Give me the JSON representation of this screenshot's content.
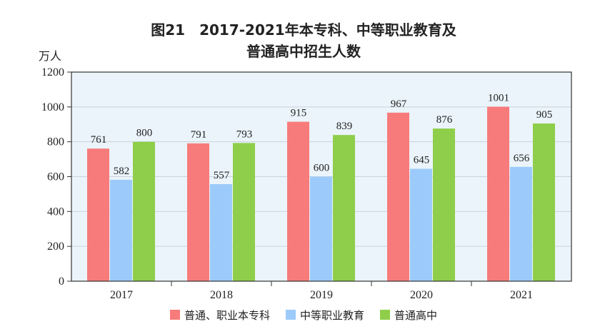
{
  "chart_data": {
    "type": "bar",
    "title_lines": [
      "图21　2017-2021年本专科、中等职业教育及",
      "普通高中招生人数"
    ],
    "ylabel": "万人",
    "ylim": [
      0,
      1200
    ],
    "yticks": [
      0,
      200,
      400,
      600,
      800,
      1000,
      1200
    ],
    "categories": [
      "2017",
      "2018",
      "2019",
      "2020",
      "2021"
    ],
    "series": [
      {
        "name": "普通、职业本专科",
        "color": "#f87b7b",
        "values": [
          761,
          791,
          915,
          967,
          1001
        ]
      },
      {
        "name": "中等职业教育",
        "color": "#9ccbfb",
        "values": [
          582,
          557,
          600,
          645,
          656
        ]
      },
      {
        "name": "普通高中",
        "color": "#8fce4a",
        "values": [
          800,
          793,
          839,
          876,
          905
        ]
      }
    ],
    "grid": true,
    "legend_position": "bottom",
    "plot_background": "#eaf4fa"
  }
}
